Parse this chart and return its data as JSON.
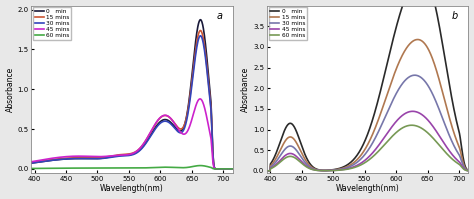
{
  "fig_bgcolor": "#e8e8e8",
  "panel_bgcolor": "#ffffff",
  "xlim": [
    395,
    715
  ],
  "panel_a": {
    "label": "a",
    "ylabel": "Absorbance",
    "xlabel": "Wavelength(nm)",
    "ylim": [
      -0.05,
      2.05
    ],
    "yticks": [
      0.0,
      0.5,
      1.0,
      1.5,
      2.0
    ],
    "xticks": [
      400,
      450,
      500,
      550,
      600,
      650,
      700
    ],
    "series": [
      {
        "label": "0   min",
        "color": "#1a1a3a",
        "lw": 1.2,
        "peak_main": 1.82,
        "peak_shoulder": 0.6,
        "peak_small": 0.08,
        "base": 0.13
      },
      {
        "label": "15 mins",
        "color": "#cc5533",
        "lw": 1.2,
        "peak_main": 1.68,
        "peak_shoulder": 0.65,
        "peak_small": 0.08,
        "base": 0.14
      },
      {
        "label": "30 mins",
        "color": "#3344bb",
        "lw": 1.2,
        "peak_main": 1.62,
        "peak_shoulder": 0.58,
        "peak_small": 0.07,
        "base": 0.13
      },
      {
        "label": "45 mins",
        "color": "#cc22cc",
        "lw": 1.2,
        "peak_main": 0.82,
        "peak_shoulder": 0.65,
        "peak_small": 0.06,
        "base": 0.16
      },
      {
        "label": "60 mins",
        "color": "#44aa44",
        "lw": 1.2,
        "peak_main": 0.04,
        "peak_shoulder": 0.02,
        "peak_small": 0.005,
        "base": 0.01
      }
    ]
  },
  "panel_b": {
    "label": "b",
    "ylabel": "Absorbance",
    "xlabel": "Wavelength(nm)",
    "ylim": [
      -0.05,
      4.0
    ],
    "yticks": [
      0.0,
      0.5,
      1.0,
      1.5,
      2.0,
      2.5,
      3.0,
      3.5
    ],
    "xticks": [
      400,
      450,
      500,
      550,
      600,
      650,
      700
    ],
    "series": [
      {
        "label": "0   min",
        "color": "#2a2a2a",
        "lw": 1.2,
        "peak_main": 3.85,
        "peak_b": 1.15,
        "shoulder": 0.5
      },
      {
        "label": "15 mins",
        "color": "#b07850",
        "lw": 1.2,
        "peak_main": 2.75,
        "peak_b": 0.82,
        "shoulder": 0.38
      },
      {
        "label": "30 mins",
        "color": "#7777aa",
        "lw": 1.2,
        "peak_main": 2.1,
        "peak_b": 0.6,
        "shoulder": 0.28
      },
      {
        "label": "45 mins",
        "color": "#9944aa",
        "lw": 1.2,
        "peak_main": 1.35,
        "peak_b": 0.42,
        "shoulder": 0.2
      },
      {
        "label": "60 mins",
        "color": "#779955",
        "lw": 1.2,
        "peak_main": 1.05,
        "peak_b": 0.35,
        "shoulder": 0.16
      }
    ]
  }
}
